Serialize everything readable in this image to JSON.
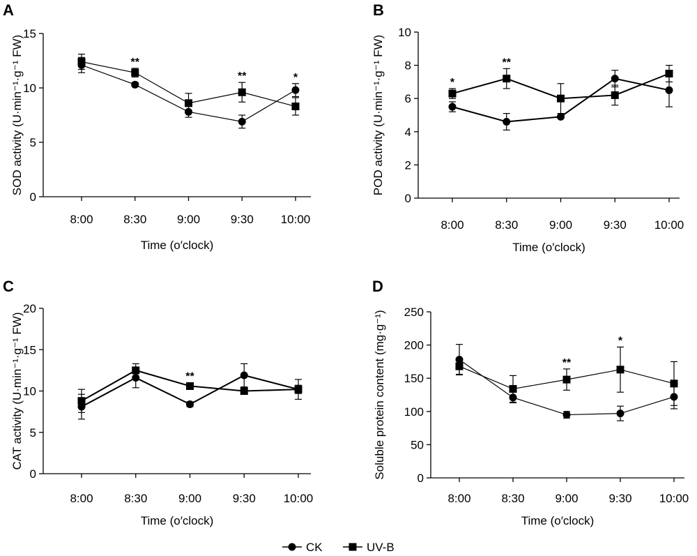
{
  "legend": {
    "entries": [
      {
        "name": "CK",
        "marker": "circle"
      },
      {
        "name": "UV-B",
        "marker": "square"
      }
    ]
  },
  "chart_data": [
    {
      "type": "line",
      "panel": "A",
      "categories": [
        "8:00",
        "8:30",
        "9:00",
        "9:30",
        "10:00"
      ],
      "xlabel": "Time (o′clock)",
      "ylabel": "SOD activity (U·min⁻¹·g⁻¹ FW)",
      "ylim": [
        0,
        15
      ],
      "yticks": [
        0,
        5,
        10,
        15
      ],
      "grid": false,
      "series": [
        {
          "name": "CK",
          "marker": "circle",
          "values": [
            12.1,
            10.3,
            7.8,
            6.9,
            9.8
          ],
          "errors": [
            0.7,
            0.2,
            0.5,
            0.6,
            0.6
          ]
        },
        {
          "name": "UV-B",
          "marker": "square",
          "values": [
            12.4,
            11.4,
            8.6,
            9.6,
            8.3
          ],
          "errors": [
            0.7,
            0.4,
            0.9,
            0.9,
            0.8
          ]
        }
      ],
      "annotations": [
        "**",
        "**",
        "*"
      ],
      "annotation_positions": [
        1,
        3,
        4
      ]
    },
    {
      "type": "line",
      "panel": "B",
      "categories": [
        "8:00",
        "8:30",
        "9:00",
        "9:30",
        "10:00"
      ],
      "xlabel": "Time (o′clock)",
      "ylabel": "POD activity (U·min⁻¹·g⁻¹ FW)",
      "ylim": [
        0,
        10
      ],
      "yticks": [
        0,
        2,
        4,
        6,
        8,
        10
      ],
      "grid": false,
      "series": [
        {
          "name": "CK",
          "marker": "circle",
          "values": [
            5.5,
            4.6,
            4.9,
            7.2,
            6.5
          ],
          "errors": [
            0.3,
            0.5,
            0.1,
            0.5,
            1.0
          ]
        },
        {
          "name": "UV-B",
          "marker": "square",
          "values": [
            6.3,
            7.2,
            6.0,
            6.2,
            7.5
          ],
          "errors": [
            0.3,
            0.6,
            0.9,
            0.6,
            0.5
          ]
        }
      ],
      "annotations": [
        "*",
        "**"
      ],
      "annotation_positions": [
        0,
        1
      ]
    },
    {
      "type": "line",
      "panel": "C",
      "categories": [
        "8:00",
        "8:30",
        "9:00",
        "9:30",
        "10:00"
      ],
      "xlabel": "Time  (o′clock)",
      "ylabel": "CAT activity (U·min⁻¹·g⁻¹ FW)",
      "ylim": [
        0,
        20
      ],
      "yticks": [
        0,
        5,
        10,
        15,
        20
      ],
      "grid": false,
      "series": [
        {
          "name": "CK",
          "marker": "circle",
          "values": [
            8.1,
            11.6,
            8.4,
            11.9,
            10.2
          ],
          "errors": [
            1.5,
            1.2,
            0.3,
            1.4,
            1.2
          ]
        },
        {
          "name": "UV-B",
          "marker": "square",
          "values": [
            8.8,
            12.5,
            10.6,
            10.0,
            10.2
          ],
          "errors": [
            1.4,
            0.8,
            0.4,
            0.3,
            0.5
          ]
        }
      ],
      "annotations": [
        "**"
      ],
      "annotation_positions": [
        2
      ]
    },
    {
      "type": "line",
      "panel": "D",
      "categories": [
        "8:00",
        "8:30",
        "9:00",
        "9:30",
        "10:00"
      ],
      "xlabel": "Time (o′clock)",
      "ylabel": "Soluble protein content (mg·g⁻¹)",
      "ylim": [
        0,
        250
      ],
      "yticks": [
        0,
        50,
        100,
        150,
        200,
        250
      ],
      "grid": false,
      "series": [
        {
          "name": "CK",
          "marker": "circle",
          "values": [
            178,
            121,
            95,
            97,
            122
          ],
          "errors": [
            23,
            8,
            5,
            11,
            18
          ]
        },
        {
          "name": "UV-B",
          "marker": "square",
          "values": [
            168,
            134,
            148,
            163,
            142
          ],
          "errors": [
            12,
            20,
            16,
            34,
            33
          ]
        }
      ],
      "annotations": [
        "**",
        "*"
      ],
      "annotation_positions": [
        2,
        3
      ]
    }
  ]
}
